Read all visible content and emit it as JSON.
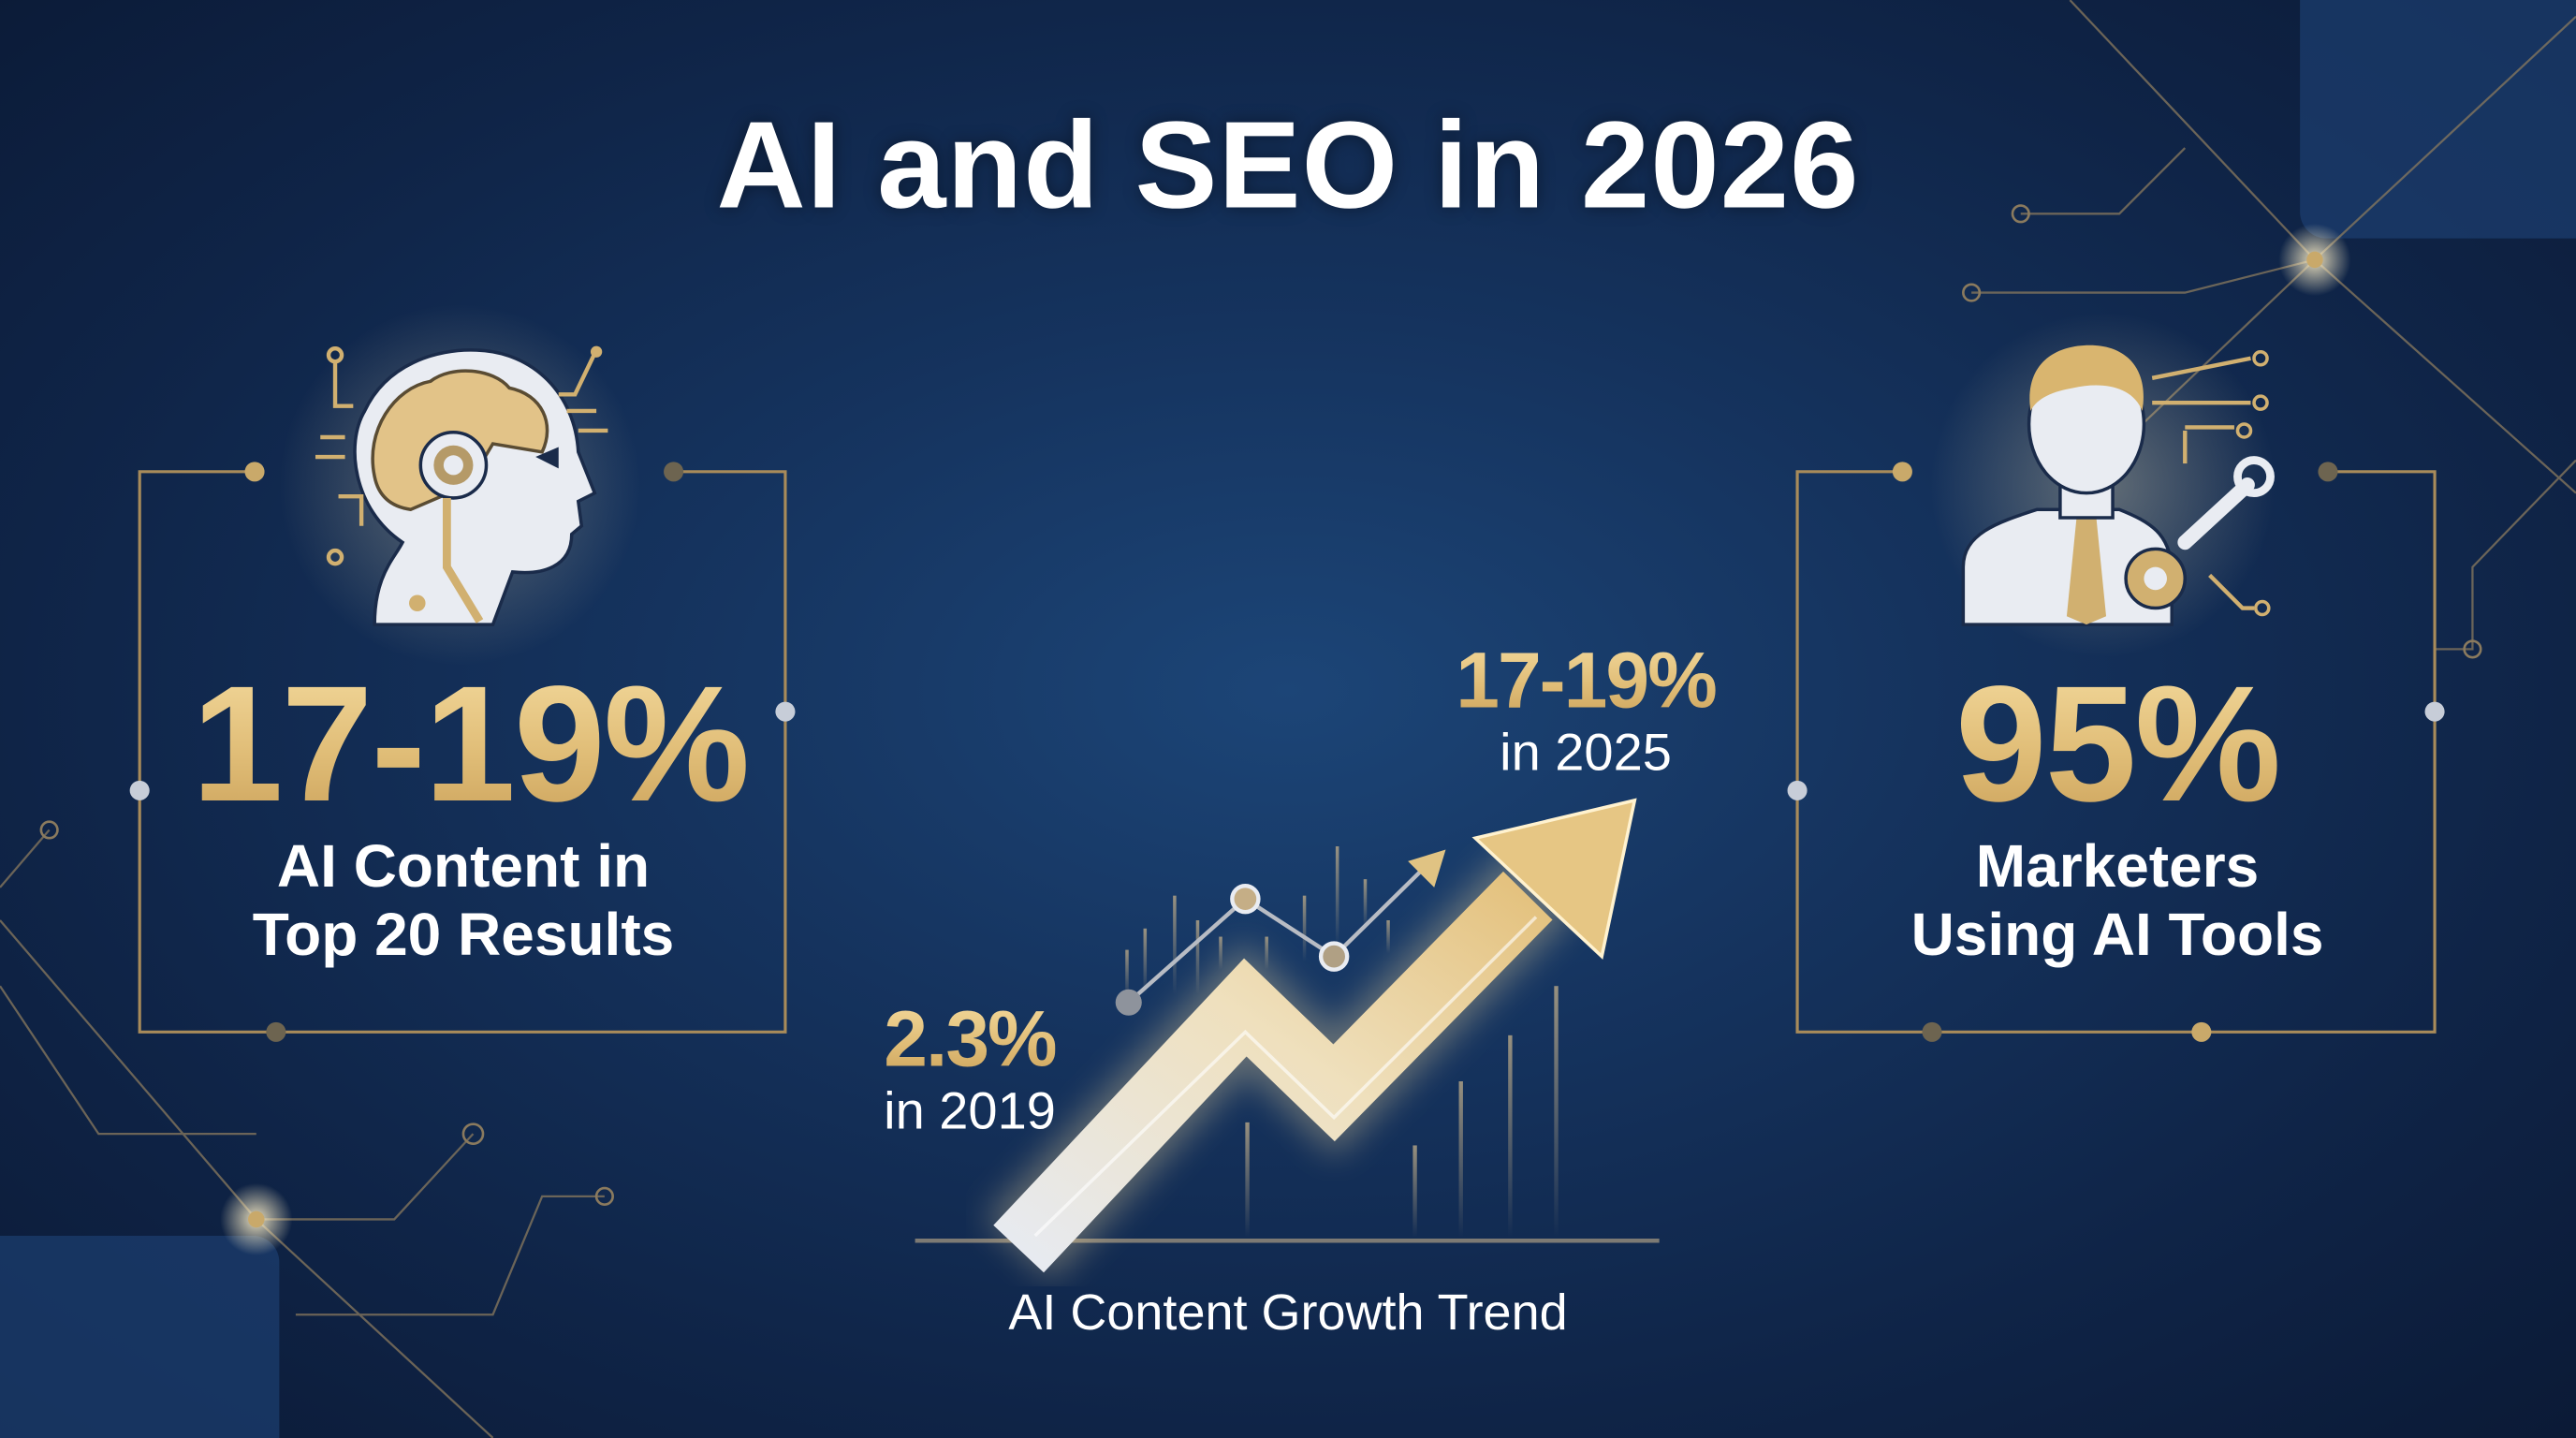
{
  "title": "AI and SEO in 2026",
  "left_stat": {
    "value": "17-19%",
    "label_line1": "AI Content in",
    "label_line2": "Top 20 Results",
    "icon": "ai-robot-head-brain-icon"
  },
  "right_stat": {
    "value": "95%",
    "label_line1": "Marketers",
    "label_line2": "Using AI Tools",
    "icon": "marketer-with-gear-wrench-icon"
  },
  "trend": {
    "caption": "AI Content Growth Trend",
    "start": {
      "value": "2.3%",
      "label": "in 2019"
    },
    "end": {
      "value": "17-19%",
      "label": "in 2025"
    },
    "direction": "upward"
  },
  "colors": {
    "background": "#15335e",
    "gold": "#e0bd77",
    "text": "#ffffff",
    "line": "#a88b5a"
  }
}
